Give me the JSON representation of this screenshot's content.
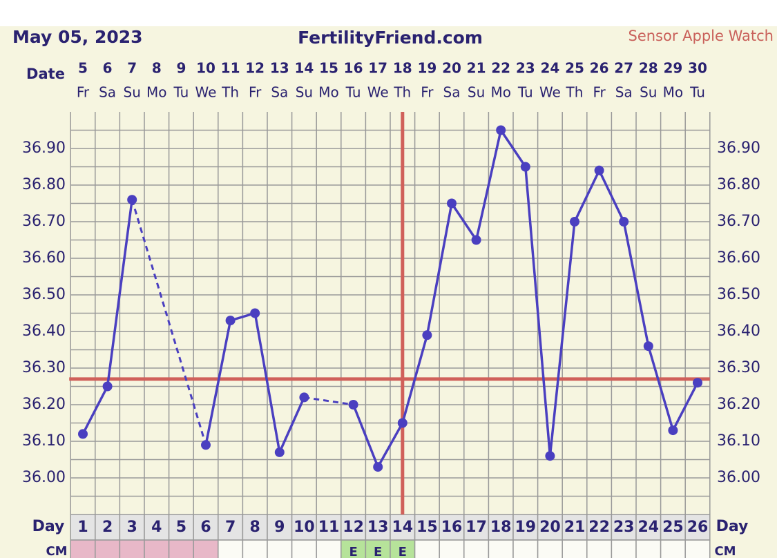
{
  "chart_data": {
    "type": "line",
    "title": "FertilityFriend.com",
    "date": "May 05, 2023",
    "source": "Sensor Apple Watch",
    "date_label": "Date",
    "day_label": "Day",
    "cm_label": "CM",
    "dates": [
      5,
      6,
      7,
      8,
      9,
      10,
      11,
      12,
      13,
      14,
      15,
      16,
      17,
      18,
      19,
      20,
      21,
      22,
      23,
      24,
      25,
      26,
      27,
      28,
      29,
      30
    ],
    "weekdays": [
      "Fr",
      "Sa",
      "Su",
      "Mo",
      "Tu",
      "We",
      "Th",
      "Fr",
      "Sa",
      "Su",
      "Mo",
      "Tu",
      "We",
      "Th",
      "Fr",
      "Sa",
      "Su",
      "Mo",
      "Tu",
      "We",
      "Th",
      "Fr",
      "Sa",
      "Su",
      "Mo",
      "Tu"
    ],
    "x": [
      1,
      2,
      3,
      4,
      5,
      6,
      7,
      8,
      9,
      10,
      11,
      12,
      13,
      14,
      15,
      16,
      17,
      18,
      19,
      20,
      21,
      22,
      23,
      24,
      25,
      26
    ],
    "series": [
      {
        "color": "#4a3fc0",
        "values": [
          36.12,
          36.25,
          36.76,
          null,
          null,
          36.09,
          36.43,
          36.45,
          36.07,
          36.22,
          null,
          36.2,
          36.03,
          36.15,
          36.39,
          36.75,
          36.65,
          36.95,
          36.85,
          36.06,
          36.7,
          36.84,
          36.7,
          36.36,
          36.13,
          36.26
        ]
      }
    ],
    "coverline": 36.27,
    "coverline_color": "#d0605a",
    "ovulation_day": 14,
    "cm": [
      null,
      null,
      null,
      null,
      null,
      null,
      null,
      null,
      null,
      null,
      null,
      "E",
      "E",
      "E",
      null,
      null,
      null,
      null,
      null,
      null,
      null,
      null,
      null,
      null,
      null,
      null
    ],
    "cm_color": "#b6e39a",
    "period": [
      true,
      true,
      true,
      true,
      true,
      true,
      false,
      false,
      false,
      false,
      false,
      false,
      false,
      false,
      false,
      false,
      false,
      false,
      false,
      false,
      false,
      false,
      false,
      false,
      false,
      false
    ],
    "period_color": "#e8b8c8",
    "ylim": [
      35.9,
      37.0
    ],
    "yticks": [
      {
        "value": 36.0,
        "label": "36.00"
      },
      {
        "value": 36.1,
        "label": "36.10"
      },
      {
        "value": 36.2,
        "label": "36.20"
      },
      {
        "value": 36.3,
        "label": "36.30"
      },
      {
        "value": 36.4,
        "label": "36.40"
      },
      {
        "value": 36.5,
        "label": "36.50"
      },
      {
        "value": 36.6,
        "label": "36.60"
      },
      {
        "value": 36.7,
        "label": "36.70"
      },
      {
        "value": 36.8,
        "label": "36.80"
      },
      {
        "value": 36.9,
        "label": "36.90"
      }
    ],
    "minor_yticks": [
      35.95,
      36.05,
      36.15,
      36.25,
      36.35,
      36.45,
      36.55,
      36.65,
      36.75,
      36.85,
      36.95
    ],
    "grid": true
  }
}
